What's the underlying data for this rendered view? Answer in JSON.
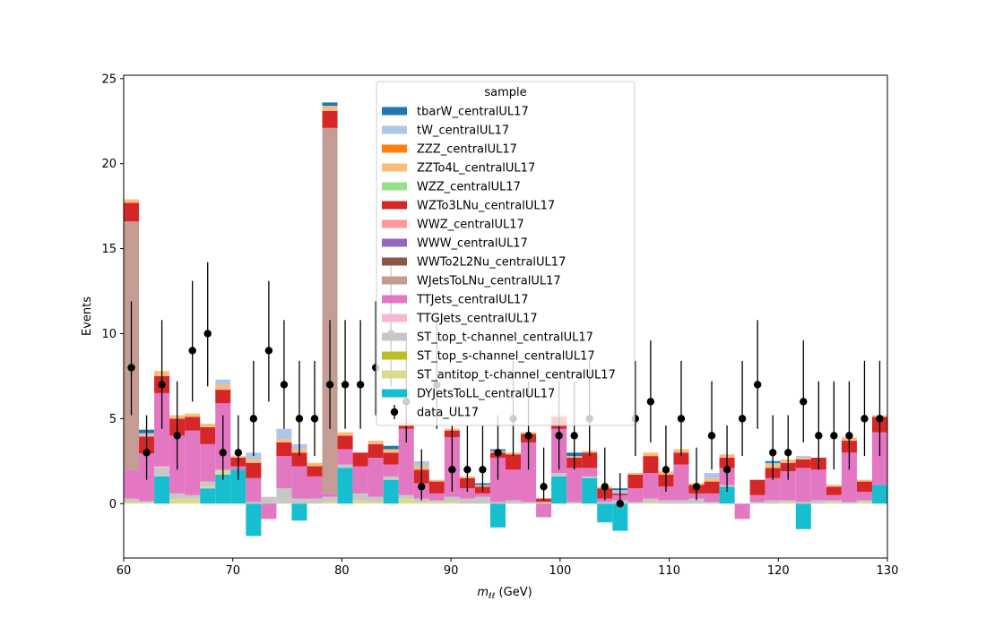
{
  "chart_data": {
    "type": "bar",
    "subtype": "stacked-histogram-with-data-points",
    "title": "",
    "xlabel": "m_ℓℓ (GeV)",
    "xlabel_main": "m",
    "xlabel_sub": "ℓℓ",
    "xlabel_unit": " (GeV)",
    "ylabel": "Events",
    "xlim": [
      60,
      130
    ],
    "ylim": [
      -3.2,
      25.2
    ],
    "bin_width": 1.4,
    "xticks": [
      60,
      70,
      80,
      90,
      100,
      110,
      120,
      130
    ],
    "yticks": [
      0,
      5,
      10,
      15,
      20,
      25
    ],
    "grid": false,
    "legend": {
      "title": "sample",
      "placement": "top-center",
      "entries": [
        {
          "name": "tbarW_centralUL17",
          "color": "#1f77b4"
        },
        {
          "name": "tW_centralUL17",
          "color": "#aec7e8"
        },
        {
          "name": "ZZZ_centralUL17",
          "color": "#ff7f0e"
        },
        {
          "name": "ZZTo4L_centralUL17",
          "color": "#ffbb78"
        },
        {
          "name": "WZZ_centralUL17",
          "color": "#98df8a"
        },
        {
          "name": "WZTo3LNu_centralUL17",
          "color": "#d62728"
        },
        {
          "name": "WWZ_centralUL17",
          "color": "#ff9896"
        },
        {
          "name": "WWW_centralUL17",
          "color": "#9467bd"
        },
        {
          "name": "WWTo2L2Nu_centralUL17",
          "color": "#8c564b"
        },
        {
          "name": "WJetsToLNu_centralUL17",
          "color": "#c49c94"
        },
        {
          "name": "TTJets_centralUL17",
          "color": "#e377c2"
        },
        {
          "name": "TTGJets_centralUL17",
          "color": "#f7b6d2"
        },
        {
          "name": "ST_top_t-channel_centralUL17",
          "color": "#c7c7c7"
        },
        {
          "name": "ST_top_s-channel_centralUL17",
          "color": "#bcbd22"
        },
        {
          "name": "ST_antitop_t-channel_centralUL17",
          "color": "#dbdb8d"
        },
        {
          "name": "DYJetsToLL_centralUL17",
          "color": "#17becf"
        },
        {
          "name": "data_UL17",
          "color": "#000000",
          "marker": "errorbar"
        }
      ]
    },
    "stack_order": [
      "DY",
      "STat",
      "STs",
      "STt",
      "TTG",
      "TT",
      "WJ",
      "WZ",
      "ZZ",
      "tW",
      "tbarW"
    ],
    "stack_colors": {
      "DY": "#17becf",
      "STat": "#dbdb8d",
      "STs": "#bcbd22",
      "STt": "#c7c7c7",
      "TTG": "#f7b6d2",
      "TT": "#e377c2",
      "WJ": "#c49c94",
      "WZ": "#d62728",
      "ZZ": "#ffbb78",
      "tW": "#aec7e8",
      "tbarW": "#1f77b4"
    },
    "bins": [
      {
        "DY": 0,
        "STat": 0.1,
        "STt": 0.2,
        "TT": 1.7,
        "WJ": 14.6,
        "WZ": 1.1,
        "ZZ": 0.2
      },
      {
        "DY": 0,
        "STat": 0.05,
        "STt": 0.1,
        "TT": 2.8,
        "WZ": 1.0,
        "ZZ": 0.1,
        "tW": 0.1,
        "tbarW": 0.2
      },
      {
        "DY": 1.6,
        "STat": 0,
        "STt": 0.5,
        "TTG": 0.1,
        "TT": 4.3,
        "WZ": 1.0,
        "ZZ": 0.3
      },
      {
        "DY": 0,
        "STat": 0.3,
        "STt": 0.3,
        "TT": 3.4,
        "WZ": 1.0,
        "ZZ": 0.2
      },
      {
        "DY": 0,
        "STat": 0.3,
        "STt": 0.2,
        "TT": 3.8,
        "WZ": 0.8,
        "ZZ": 0.2
      },
      {
        "DY": 0.9,
        "STat": 0.1,
        "STt": 0.3,
        "TT": 2.2,
        "WZ": 1.0,
        "ZZ": 0.2
      },
      {
        "DY": 1.7,
        "STat": 0.2,
        "STt": 0.1,
        "TT": 3.9,
        "WZ": 0.8,
        "ZZ": 0.3,
        "tW": 0.3
      },
      {
        "DY": 2.0,
        "TT": 0.2,
        "WZ": 0.5,
        "ZZ": 0.1
      },
      {
        "DY": -1.9,
        "STt": 0.1,
        "TT": 1.4,
        "WZ": 0.9,
        "ZZ": 0.2,
        "tW": 0.4
      },
      {
        "DY": 0,
        "TT": -0.9,
        "STt": 0.4
      },
      {
        "DY": 0,
        "STt": 0.9,
        "TT": 1.9,
        "WZ": 0.8,
        "ZZ": 0.2,
        "tW": 0.6
      },
      {
        "DY": -1.0,
        "STt": 0.3,
        "TT": 1.9,
        "WZ": 0.8,
        "ZZ": 0.2,
        "tW": 0.3
      },
      {
        "DY": 0,
        "STt": 0.3,
        "TT": 1.3,
        "WZ": 0.6,
        "ZZ": 0.2
      },
      {
        "DY": 0,
        "STat": 0.1,
        "STt": 0.3,
        "TT": 0.2,
        "WJ": 21.5,
        "WZ": 1.0,
        "ZZ": 0.3,
        "tbarW": 0.2
      },
      {
        "DY": 2.1,
        "STt": 0.2,
        "TT": 0.9,
        "WZ": 0.8,
        "ZZ": 0.2
      },
      {
        "DY": 0,
        "STat": 0.2,
        "STt": 0.4,
        "TT": 1.6,
        "WZ": 0.8
      },
      {
        "DY": 0,
        "STat": 0.1,
        "STt": 0.3,
        "TT": 2.3,
        "WZ": 0.8,
        "ZZ": 0.2
      },
      {
        "DY": 1.4,
        "STt": 0.2,
        "TT": 0.7,
        "WZ": 0.7,
        "ZZ": 0.2,
        "tbarW": 0.2
      },
      {
        "DY": 0,
        "STat": 0.3,
        "STt": 0.2,
        "TT": 3.9,
        "WZ": 0.2,
        "ZZ": 0.2
      },
      {
        "DY": 0,
        "STat": 0.1,
        "STt": 0.2,
        "TT": 0.9,
        "WZ": 0.8,
        "ZZ": 0.2,
        "tW": 0.3
      },
      {
        "DY": 0,
        "STat": 0.1,
        "STt": 0.1,
        "TT": 0.4,
        "WZ": 0.7,
        "ZZ": 0.1
      },
      {
        "DY": 0,
        "STat": 0.1,
        "STt": 0.3,
        "TT": 3.5,
        "WZ": 0.4,
        "ZZ": 0.1
      },
      {
        "DY": 0,
        "STt": 0.3,
        "TT": 0.6,
        "WZ": 0.6,
        "ZZ": 0.1
      },
      {
        "DY": 0,
        "STt": 0.4,
        "TT": 0.2,
        "WZ": 0.4,
        "ZZ": 0.1,
        "tbarW": 0.1
      },
      {
        "DY": -1.4,
        "STt": 0.1,
        "TT": 2.6,
        "WZ": 0.3,
        "ZZ": 0.1,
        "tbarW": 0.1
      },
      {
        "DY": 0,
        "STt": 0.2,
        "TT": 1.8,
        "WZ": 0.9,
        "ZZ": 0.1
      },
      {
        "DY": 0,
        "STt": 0.1,
        "TT": 3.5,
        "WZ": 0.5,
        "ZZ": 0.1
      },
      {
        "DY": 0,
        "STt": 0.1,
        "TT": -0.8,
        "WZ": 0.2
      },
      {
        "DY": 1.6,
        "STt": 0.2,
        "TT": 2.6,
        "WZ": 0.7,
        "ZZ": 0.1
      },
      {
        "DY": 0,
        "STt": 0.1,
        "TT": 2.0,
        "WZ": 0.6,
        "ZZ": 0.1,
        "tbarW": 0.2
      },
      {
        "DY": 1.5,
        "STt": 0.1,
        "TT": 0.5,
        "WZ": 0.9,
        "ZZ": 0.1
      },
      {
        "DY": -1.1,
        "STt": 0.1,
        "TT": 0.2,
        "WZ": 0.6,
        "ZZ": 0.1
      },
      {
        "DY": -1.6,
        "STt": 0.2,
        "TT": 0.3,
        "WZ": 0.1,
        "tW": 0.2,
        "tbarW": 0.1
      },
      {
        "DY": 0,
        "STt": 0.1,
        "TT": 0.8,
        "WZ": 0.8,
        "ZZ": 0.1
      },
      {
        "DY": 0,
        "STat": 0.1,
        "STt": 0.2,
        "TT": 1.5,
        "WZ": 1.0,
        "ZZ": 0.2
      },
      {
        "DY": 0,
        "STt": 0.2,
        "TT": 0.8,
        "WZ": 0.7,
        "ZZ": 0.2
      },
      {
        "DY": 0,
        "STt": 0.2,
        "TT": 2.1,
        "WZ": 0.7,
        "ZZ": 0.2
      },
      {
        "DY": 0,
        "STt": 0.3,
        "TT": 0.3,
        "WZ": 0.5,
        "ZZ": 0.1
      },
      {
        "DY": 0,
        "STt": 0.1,
        "TT": 0.5,
        "WZ": 0.7,
        "ZZ": 0.2,
        "tW": 0.3
      },
      {
        "DY": 1.0,
        "STt": 0.1,
        "TT": 1.0,
        "WZ": 0.6,
        "ZZ": 0.2
      },
      {
        "DY": 0,
        "TT": -0.9
      },
      {
        "DY": 0,
        "STt": 0.1,
        "TT": 0.4,
        "WZ": 0.9
      },
      {
        "DY": 0,
        "STt": 0.2,
        "TT": 1.3,
        "WZ": 0.6,
        "ZZ": 0.2,
        "tW": 0.1,
        "tbarW": 0.1
      },
      {
        "DY": 0,
        "STat": 0.1,
        "STt": 0.1,
        "TT": 1.7,
        "WZ": 0.5,
        "ZZ": 0.2
      },
      {
        "DY": -1.5,
        "STt": 0.1,
        "TT": 2.0,
        "WZ": 0.5,
        "ZZ": 0.1,
        "tW": 0.1
      },
      {
        "DY": 0,
        "STt": 0.2,
        "TT": 1.8,
        "WZ": 0.7
      },
      {
        "DY": 0,
        "STat": 0.1,
        "STt": 0.1,
        "TT": 0.3,
        "WZ": 0.5,
        "ZZ": 0.1
      },
      {
        "DY": 0,
        "STt": 0.1,
        "TT": 2.9,
        "WZ": 0.7,
        "ZZ": 0.2
      },
      {
        "DY": 0,
        "STat": 0.1,
        "STt": 0.1,
        "TT": 0.5,
        "WZ": 0.6,
        "ZZ": 0.1
      },
      {
        "DY": 1.1,
        "TT": 3.1,
        "WZ": 0.9,
        "ZZ": 0.1
      }
    ],
    "data_points": [
      {
        "x": 60.7,
        "y": 8,
        "lo": 5.2,
        "hi": 11.9
      },
      {
        "x": 62.1,
        "y": 3,
        "lo": 1.4,
        "hi": 5.2
      },
      {
        "x": 63.5,
        "y": 7,
        "lo": 4.4,
        "hi": 10.8
      },
      {
        "x": 64.9,
        "y": 4,
        "lo": 2.0,
        "hi": 7.2
      },
      {
        "x": 66.3,
        "y": 9,
        "lo": 6.0,
        "hi": 13.1
      },
      {
        "x": 67.7,
        "y": 10,
        "lo": 6.9,
        "hi": 14.2
      },
      {
        "x": 69.1,
        "y": 3,
        "lo": 1.4,
        "hi": 5.2
      },
      {
        "x": 70.5,
        "y": 3,
        "lo": 1.4,
        "hi": 5.2
      },
      {
        "x": 71.9,
        "y": 5,
        "lo": 2.8,
        "hi": 8.4
      },
      {
        "x": 73.3,
        "y": 9,
        "lo": 6.0,
        "hi": 13.1
      },
      {
        "x": 74.7,
        "y": 7,
        "lo": 4.4,
        "hi": 10.8
      },
      {
        "x": 76.1,
        "y": 5,
        "lo": 2.8,
        "hi": 8.4
      },
      {
        "x": 77.5,
        "y": 5,
        "lo": 2.8,
        "hi": 8.4
      },
      {
        "x": 78.9,
        "y": 7,
        "lo": 4.4,
        "hi": 10.8
      },
      {
        "x": 80.3,
        "y": 7,
        "lo": 4.4,
        "hi": 10.8
      },
      {
        "x": 81.7,
        "y": 7,
        "lo": 4.4,
        "hi": 10.8
      },
      {
        "x": 83.1,
        "y": 8,
        "lo": 5.2,
        "hi": 11.9
      },
      {
        "x": 84.5,
        "y": 10,
        "lo": 6.9,
        "hi": 14.2
      },
      {
        "x": 85.9,
        "y": 6,
        "lo": 3.6,
        "hi": 9.6
      },
      {
        "x": 87.3,
        "y": 1,
        "lo": 0.2,
        "hi": 3.2
      },
      {
        "x": 88.7,
        "y": 7,
        "lo": 4.4,
        "hi": 10.8
      },
      {
        "x": 90.1,
        "y": 2,
        "lo": 0.7,
        "hi": 4.6
      },
      {
        "x": 91.5,
        "y": 2,
        "lo": 0.7,
        "hi": 4.6
      },
      {
        "x": 92.9,
        "y": 2,
        "lo": 0.7,
        "hi": 4.6
      },
      {
        "x": 94.3,
        "y": 3,
        "lo": 1.4,
        "hi": 5.2
      },
      {
        "x": 95.7,
        "y": 5,
        "lo": 2.8,
        "hi": 8.4
      },
      {
        "x": 97.1,
        "y": 4,
        "lo": 2.0,
        "hi": 7.2
      },
      {
        "x": 98.5,
        "y": 1,
        "lo": 0.2,
        "hi": 3.3
      },
      {
        "x": 99.9,
        "y": 4,
        "lo": 2.0,
        "hi": 7.2
      },
      {
        "x": 101.3,
        "y": 4,
        "lo": 2.0,
        "hi": 7.2
      },
      {
        "x": 102.7,
        "y": 5,
        "lo": 2.8,
        "hi": 8.4
      },
      {
        "x": 104.1,
        "y": 1,
        "lo": 0.2,
        "hi": 3.3
      },
      {
        "x": 105.5,
        "y": 0,
        "lo": 0,
        "hi": 1.8
      },
      {
        "x": 106.9,
        "y": 5,
        "lo": 2.8,
        "hi": 8.4
      },
      {
        "x": 108.3,
        "y": 6,
        "lo": 3.6,
        "hi": 9.6
      },
      {
        "x": 109.7,
        "y": 2,
        "lo": 0.7,
        "hi": 4.6
      },
      {
        "x": 111.1,
        "y": 5,
        "lo": 2.8,
        "hi": 8.4
      },
      {
        "x": 112.5,
        "y": 1,
        "lo": 0.2,
        "hi": 3.3
      },
      {
        "x": 113.9,
        "y": 4,
        "lo": 2.0,
        "hi": 7.2
      },
      {
        "x": 115.3,
        "y": 2,
        "lo": 0.7,
        "hi": 4.6
      },
      {
        "x": 116.7,
        "y": 5,
        "lo": 2.8,
        "hi": 8.4
      },
      {
        "x": 118.1,
        "y": 7,
        "lo": 4.4,
        "hi": 10.8
      },
      {
        "x": 119.5,
        "y": 3,
        "lo": 1.4,
        "hi": 5.2
      },
      {
        "x": 120.9,
        "y": 3,
        "lo": 1.4,
        "hi": 5.2
      },
      {
        "x": 122.3,
        "y": 6,
        "lo": 3.6,
        "hi": 9.6
      },
      {
        "x": 123.7,
        "y": 4,
        "lo": 2.0,
        "hi": 7.2
      },
      {
        "x": 125.1,
        "y": 4,
        "lo": 2.0,
        "hi": 7.2
      },
      {
        "x": 126.5,
        "y": 4,
        "lo": 2.0,
        "hi": 7.2
      },
      {
        "x": 127.9,
        "y": 5,
        "lo": 2.8,
        "hi": 8.4
      },
      {
        "x": 129.3,
        "y": 5,
        "lo": 2.8,
        "hi": 8.4
      }
    ]
  }
}
